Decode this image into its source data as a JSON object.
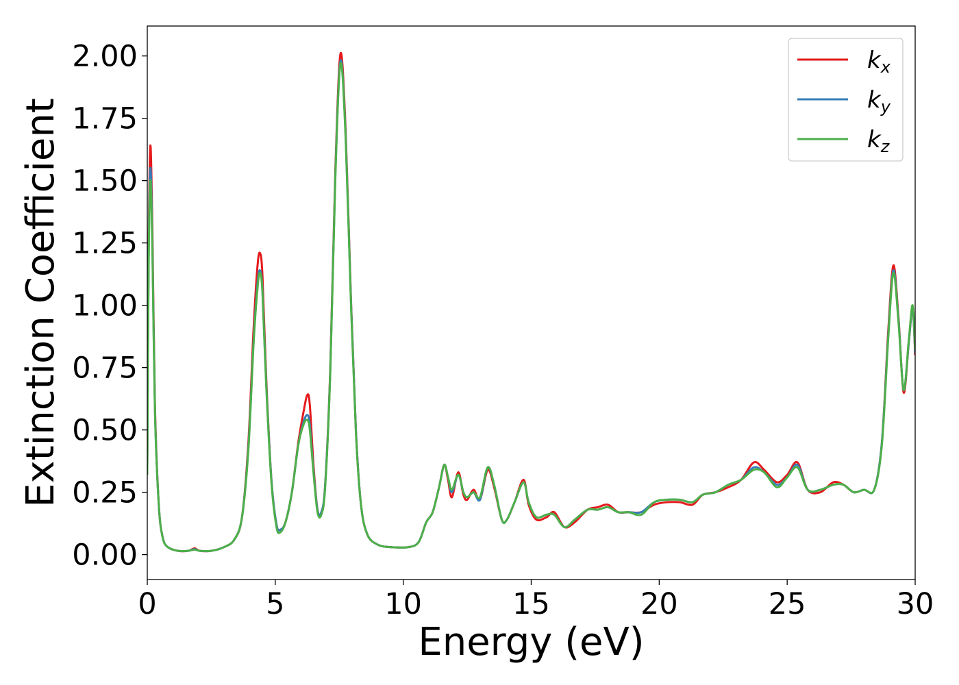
{
  "chart_data": {
    "type": "line",
    "xlabel": "Energy (eV)",
    "ylabel": "Extinction Coefficient",
    "xlim": [
      0,
      30
    ],
    "ylim": [
      -0.1,
      2.12
    ],
    "xticks": [
      0,
      5,
      10,
      15,
      20,
      25,
      30
    ],
    "xtick_labels": [
      "0",
      "5",
      "10",
      "15",
      "20",
      "25",
      "30"
    ],
    "yticks": [
      0,
      0.25,
      0.5,
      0.75,
      1.0,
      1.25,
      1.5,
      1.75,
      2.0
    ],
    "ytick_labels": [
      "0.00",
      "0.25",
      "0.50",
      "0.75",
      "1.00",
      "1.25",
      "1.50",
      "1.75",
      "2.00"
    ],
    "legend_position": "top-right",
    "grid": false,
    "series": [
      {
        "name": "k_x",
        "label_base": "k",
        "label_sub": "x",
        "color": "#e41a1c",
        "points": [
          [
            0,
            0.35
          ],
          [
            0.05,
            1.2
          ],
          [
            0.12,
            1.64
          ],
          [
            0.2,
            1.3
          ],
          [
            0.3,
            0.6
          ],
          [
            0.45,
            0.2
          ],
          [
            0.6,
            0.07
          ],
          [
            0.8,
            0.03
          ],
          [
            1.2,
            0.015
          ],
          [
            1.6,
            0.015
          ],
          [
            1.85,
            0.025
          ],
          [
            2.05,
            0.015
          ],
          [
            2.5,
            0.015
          ],
          [
            3.0,
            0.03
          ],
          [
            3.4,
            0.06
          ],
          [
            3.7,
            0.15
          ],
          [
            3.95,
            0.45
          ],
          [
            4.15,
            0.9
          ],
          [
            4.3,
            1.15
          ],
          [
            4.4,
            1.21
          ],
          [
            4.5,
            1.12
          ],
          [
            4.65,
            0.7
          ],
          [
            4.85,
            0.3
          ],
          [
            5.05,
            0.12
          ],
          [
            5.2,
            0.1
          ],
          [
            5.4,
            0.13
          ],
          [
            5.65,
            0.25
          ],
          [
            5.9,
            0.45
          ],
          [
            6.1,
            0.57
          ],
          [
            6.25,
            0.64
          ],
          [
            6.35,
            0.6
          ],
          [
            6.5,
            0.35
          ],
          [
            6.65,
            0.18
          ],
          [
            6.8,
            0.17
          ],
          [
            6.95,
            0.28
          ],
          [
            7.15,
            0.75
          ],
          [
            7.35,
            1.55
          ],
          [
            7.55,
            2.01
          ],
          [
            7.75,
            1.7
          ],
          [
            7.95,
            1.05
          ],
          [
            8.15,
            0.5
          ],
          [
            8.35,
            0.2
          ],
          [
            8.6,
            0.08
          ],
          [
            9.0,
            0.04
          ],
          [
            9.5,
            0.03
          ],
          [
            10.2,
            0.03
          ],
          [
            10.6,
            0.05
          ],
          [
            10.9,
            0.13
          ],
          [
            11.15,
            0.17
          ],
          [
            11.4,
            0.27
          ],
          [
            11.6,
            0.36
          ],
          [
            11.75,
            0.3
          ],
          [
            11.9,
            0.23
          ],
          [
            12.15,
            0.33
          ],
          [
            12.35,
            0.24
          ],
          [
            12.5,
            0.22
          ],
          [
            12.75,
            0.26
          ],
          [
            13.0,
            0.22
          ],
          [
            13.3,
            0.34
          ],
          [
            13.55,
            0.27
          ],
          [
            13.85,
            0.14
          ],
          [
            14.05,
            0.14
          ],
          [
            14.35,
            0.21
          ],
          [
            14.7,
            0.3
          ],
          [
            14.9,
            0.2
          ],
          [
            15.2,
            0.14
          ],
          [
            15.6,
            0.15
          ],
          [
            15.9,
            0.17
          ],
          [
            16.3,
            0.11
          ],
          [
            16.7,
            0.13
          ],
          [
            17.2,
            0.18
          ],
          [
            17.6,
            0.19
          ],
          [
            18.0,
            0.2
          ],
          [
            18.4,
            0.17
          ],
          [
            18.8,
            0.17
          ],
          [
            19.3,
            0.17
          ],
          [
            19.8,
            0.2
          ],
          [
            20.3,
            0.21
          ],
          [
            20.8,
            0.21
          ],
          [
            21.3,
            0.2
          ],
          [
            21.7,
            0.24
          ],
          [
            22.2,
            0.25
          ],
          [
            22.7,
            0.27
          ],
          [
            23.2,
            0.3
          ],
          [
            23.7,
            0.37
          ],
          [
            24.1,
            0.34
          ],
          [
            24.6,
            0.29
          ],
          [
            25.0,
            0.32
          ],
          [
            25.4,
            0.37
          ],
          [
            25.8,
            0.26
          ],
          [
            26.3,
            0.25
          ],
          [
            26.8,
            0.29
          ],
          [
            27.2,
            0.28
          ],
          [
            27.6,
            0.25
          ],
          [
            28.0,
            0.26
          ],
          [
            28.4,
            0.26
          ],
          [
            28.7,
            0.45
          ],
          [
            28.95,
            0.9
          ],
          [
            29.15,
            1.16
          ],
          [
            29.35,
            0.95
          ],
          [
            29.55,
            0.65
          ],
          [
            29.75,
            0.85
          ],
          [
            29.9,
            0.99
          ],
          [
            30,
            0.8
          ]
        ]
      },
      {
        "name": "k_y",
        "label_base": "k",
        "label_sub": "y",
        "color": "#377eb8",
        "points": [
          [
            0,
            0.33
          ],
          [
            0.05,
            1.15
          ],
          [
            0.12,
            1.55
          ],
          [
            0.2,
            1.25
          ],
          [
            0.3,
            0.58
          ],
          [
            0.45,
            0.2
          ],
          [
            0.6,
            0.07
          ],
          [
            0.8,
            0.03
          ],
          [
            1.2,
            0.015
          ],
          [
            1.6,
            0.015
          ],
          [
            1.85,
            0.022
          ],
          [
            2.05,
            0.015
          ],
          [
            2.5,
            0.015
          ],
          [
            3.0,
            0.03
          ],
          [
            3.4,
            0.06
          ],
          [
            3.7,
            0.15
          ],
          [
            3.95,
            0.43
          ],
          [
            4.15,
            0.85
          ],
          [
            4.3,
            1.08
          ],
          [
            4.4,
            1.14
          ],
          [
            4.5,
            1.06
          ],
          [
            4.65,
            0.68
          ],
          [
            4.85,
            0.3
          ],
          [
            5.05,
            0.12
          ],
          [
            5.2,
            0.1
          ],
          [
            5.4,
            0.13
          ],
          [
            5.65,
            0.25
          ],
          [
            5.9,
            0.44
          ],
          [
            6.1,
            0.53
          ],
          [
            6.25,
            0.56
          ],
          [
            6.35,
            0.52
          ],
          [
            6.5,
            0.33
          ],
          [
            6.65,
            0.18
          ],
          [
            6.8,
            0.17
          ],
          [
            6.95,
            0.28
          ],
          [
            7.15,
            0.74
          ],
          [
            7.35,
            1.53
          ],
          [
            7.55,
            1.98
          ],
          [
            7.75,
            1.68
          ],
          [
            7.95,
            1.04
          ],
          [
            8.15,
            0.5
          ],
          [
            8.35,
            0.2
          ],
          [
            8.6,
            0.08
          ],
          [
            9.0,
            0.04
          ],
          [
            9.5,
            0.03
          ],
          [
            10.2,
            0.03
          ],
          [
            10.6,
            0.05
          ],
          [
            10.9,
            0.13
          ],
          [
            11.15,
            0.17
          ],
          [
            11.4,
            0.27
          ],
          [
            11.6,
            0.36
          ],
          [
            11.75,
            0.31
          ],
          [
            11.9,
            0.25
          ],
          [
            12.15,
            0.32
          ],
          [
            12.35,
            0.25
          ],
          [
            12.5,
            0.23
          ],
          [
            12.75,
            0.25
          ],
          [
            13.0,
            0.22
          ],
          [
            13.3,
            0.35
          ],
          [
            13.55,
            0.28
          ],
          [
            13.85,
            0.14
          ],
          [
            14.05,
            0.14
          ],
          [
            14.35,
            0.21
          ],
          [
            14.7,
            0.29
          ],
          [
            14.9,
            0.21
          ],
          [
            15.2,
            0.15
          ],
          [
            15.6,
            0.16
          ],
          [
            15.9,
            0.16
          ],
          [
            16.3,
            0.11
          ],
          [
            16.7,
            0.14
          ],
          [
            17.2,
            0.18
          ],
          [
            17.6,
            0.18
          ],
          [
            18.0,
            0.19
          ],
          [
            18.4,
            0.17
          ],
          [
            18.8,
            0.17
          ],
          [
            19.3,
            0.17
          ],
          [
            19.8,
            0.21
          ],
          [
            20.3,
            0.22
          ],
          [
            20.8,
            0.22
          ],
          [
            21.3,
            0.21
          ],
          [
            21.7,
            0.24
          ],
          [
            22.2,
            0.25
          ],
          [
            22.7,
            0.28
          ],
          [
            23.2,
            0.3
          ],
          [
            23.7,
            0.35
          ],
          [
            24.1,
            0.33
          ],
          [
            24.6,
            0.28
          ],
          [
            25.0,
            0.31
          ],
          [
            25.4,
            0.36
          ],
          [
            25.8,
            0.26
          ],
          [
            26.3,
            0.26
          ],
          [
            26.8,
            0.28
          ],
          [
            27.2,
            0.28
          ],
          [
            27.6,
            0.25
          ],
          [
            28.0,
            0.26
          ],
          [
            28.4,
            0.26
          ],
          [
            28.7,
            0.45
          ],
          [
            28.95,
            0.88
          ],
          [
            29.15,
            1.14
          ],
          [
            29.35,
            0.94
          ],
          [
            29.55,
            0.66
          ],
          [
            29.75,
            0.85
          ],
          [
            29.9,
            0.99
          ],
          [
            30,
            0.81
          ]
        ]
      },
      {
        "name": "k_z",
        "label_base": "k",
        "label_sub": "z",
        "color": "#4daf4a",
        "points": [
          [
            0,
            0.32
          ],
          [
            0.05,
            1.12
          ],
          [
            0.12,
            1.5
          ],
          [
            0.2,
            1.22
          ],
          [
            0.3,
            0.57
          ],
          [
            0.45,
            0.2
          ],
          [
            0.6,
            0.07
          ],
          [
            0.8,
            0.03
          ],
          [
            1.2,
            0.015
          ],
          [
            1.6,
            0.015
          ],
          [
            1.85,
            0.02
          ],
          [
            2.05,
            0.015
          ],
          [
            2.5,
            0.015
          ],
          [
            3.0,
            0.03
          ],
          [
            3.4,
            0.06
          ],
          [
            3.7,
            0.15
          ],
          [
            3.95,
            0.42
          ],
          [
            4.15,
            0.84
          ],
          [
            4.3,
            1.06
          ],
          [
            4.4,
            1.13
          ],
          [
            4.5,
            1.05
          ],
          [
            4.65,
            0.67
          ],
          [
            4.85,
            0.29
          ],
          [
            5.05,
            0.11
          ],
          [
            5.2,
            0.09
          ],
          [
            5.4,
            0.13
          ],
          [
            5.65,
            0.25
          ],
          [
            5.9,
            0.44
          ],
          [
            6.1,
            0.52
          ],
          [
            6.25,
            0.54
          ],
          [
            6.35,
            0.5
          ],
          [
            6.5,
            0.32
          ],
          [
            6.65,
            0.17
          ],
          [
            6.8,
            0.16
          ],
          [
            6.95,
            0.27
          ],
          [
            7.15,
            0.73
          ],
          [
            7.35,
            1.52
          ],
          [
            7.55,
            1.97
          ],
          [
            7.75,
            1.67
          ],
          [
            7.95,
            1.03
          ],
          [
            8.15,
            0.49
          ],
          [
            8.35,
            0.2
          ],
          [
            8.6,
            0.08
          ],
          [
            9.0,
            0.04
          ],
          [
            9.5,
            0.03
          ],
          [
            10.2,
            0.03
          ],
          [
            10.6,
            0.05
          ],
          [
            10.9,
            0.13
          ],
          [
            11.15,
            0.17
          ],
          [
            11.4,
            0.27
          ],
          [
            11.6,
            0.36
          ],
          [
            11.75,
            0.31
          ],
          [
            11.9,
            0.26
          ],
          [
            12.15,
            0.32
          ],
          [
            12.35,
            0.25
          ],
          [
            12.5,
            0.23
          ],
          [
            12.75,
            0.25
          ],
          [
            13.0,
            0.23
          ],
          [
            13.3,
            0.35
          ],
          [
            13.55,
            0.28
          ],
          [
            13.85,
            0.14
          ],
          [
            14.05,
            0.14
          ],
          [
            14.35,
            0.21
          ],
          [
            14.7,
            0.29
          ],
          [
            14.9,
            0.21
          ],
          [
            15.2,
            0.15
          ],
          [
            15.6,
            0.16
          ],
          [
            15.9,
            0.16
          ],
          [
            16.3,
            0.11
          ],
          [
            16.7,
            0.14
          ],
          [
            17.2,
            0.18
          ],
          [
            17.6,
            0.18
          ],
          [
            18.0,
            0.19
          ],
          [
            18.4,
            0.17
          ],
          [
            18.8,
            0.17
          ],
          [
            19.3,
            0.16
          ],
          [
            19.8,
            0.21
          ],
          [
            20.3,
            0.22
          ],
          [
            20.8,
            0.22
          ],
          [
            21.3,
            0.21
          ],
          [
            21.7,
            0.24
          ],
          [
            22.2,
            0.25
          ],
          [
            22.7,
            0.28
          ],
          [
            23.2,
            0.3
          ],
          [
            23.7,
            0.34
          ],
          [
            24.1,
            0.33
          ],
          [
            24.6,
            0.27
          ],
          [
            25.0,
            0.31
          ],
          [
            25.4,
            0.35
          ],
          [
            25.8,
            0.26
          ],
          [
            26.3,
            0.26
          ],
          [
            26.8,
            0.28
          ],
          [
            27.2,
            0.28
          ],
          [
            27.6,
            0.25
          ],
          [
            28.0,
            0.26
          ],
          [
            28.4,
            0.26
          ],
          [
            28.7,
            0.44
          ],
          [
            28.95,
            0.87
          ],
          [
            29.15,
            1.13
          ],
          [
            29.35,
            0.93
          ],
          [
            29.55,
            0.66
          ],
          [
            29.75,
            0.86
          ],
          [
            29.9,
            1.0
          ],
          [
            30,
            0.82
          ]
        ]
      }
    ]
  }
}
